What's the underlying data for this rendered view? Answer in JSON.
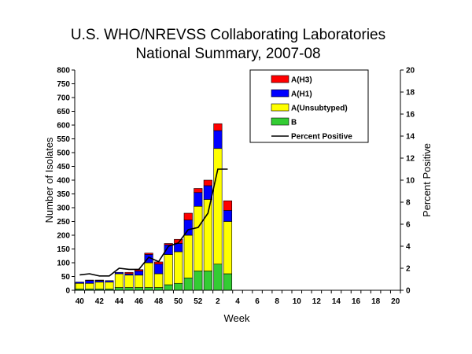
{
  "chart_data": {
    "type": "bar",
    "stacked": true,
    "title_line1": "U.S. WHO/NREVSS Collaborating Laboratories",
    "title_line2": "National Summary, 2007-08",
    "xlabel": "Week",
    "ylabel": "Number of Isolates",
    "y2label": "Percent Positive",
    "ylim": [
      0,
      800
    ],
    "y2lim": [
      0,
      20
    ],
    "yticks": [
      0,
      50,
      100,
      150,
      200,
      250,
      300,
      350,
      400,
      450,
      500,
      550,
      600,
      650,
      700,
      750,
      800
    ],
    "y2ticks": [
      0,
      2,
      4,
      6,
      8,
      10,
      12,
      14,
      16,
      18,
      20
    ],
    "categories": [
      "40",
      "41",
      "42",
      "43",
      "44",
      "45",
      "46",
      "47",
      "48",
      "49",
      "50",
      "51",
      "52",
      "1",
      "2",
      "3",
      "4",
      "5",
      "6",
      "7",
      "8",
      "9",
      "10",
      "11",
      "12",
      "13",
      "14",
      "15",
      "16",
      "17",
      "18",
      "19",
      "20"
    ],
    "xtick_labels": [
      "40",
      "42",
      "44",
      "46",
      "48",
      "50",
      "52",
      "2",
      "4",
      "6",
      "8",
      "10",
      "12",
      "14",
      "16",
      "18",
      "20"
    ],
    "series": [
      {
        "name": "B",
        "color": "#33cc33",
        "values": [
          5,
          5,
          5,
          5,
          10,
          10,
          10,
          10,
          10,
          20,
          25,
          45,
          70,
          70,
          95,
          60,
          null,
          null,
          null,
          null,
          null,
          null,
          null,
          null,
          null,
          null,
          null,
          null,
          null,
          null,
          null,
          null,
          null
        ]
      },
      {
        "name": "A(Unsubtyped)",
        "color": "#ffff00",
        "values": [
          20,
          20,
          25,
          25,
          50,
          45,
          45,
          90,
          50,
          110,
          115,
          155,
          235,
          260,
          420,
          190,
          null,
          null,
          null,
          null,
          null,
          null,
          null,
          null,
          null,
          null,
          null,
          null,
          null,
          null,
          null,
          null,
          null
        ]
      },
      {
        "name": "A(H1)",
        "color": "#0000ff",
        "values": [
          5,
          10,
          5,
          5,
          5,
          5,
          15,
          30,
          35,
          35,
          30,
          55,
          50,
          50,
          65,
          40,
          null,
          null,
          null,
          null,
          null,
          null,
          null,
          null,
          null,
          null,
          null,
          null,
          null,
          null,
          null,
          null,
          null
        ]
      },
      {
        "name": "A(H3)",
        "color": "#ff0000",
        "values": [
          0,
          2,
          2,
          0,
          0,
          5,
          5,
          5,
          8,
          5,
          15,
          25,
          15,
          20,
          25,
          35,
          null,
          null,
          null,
          null,
          null,
          null,
          null,
          null,
          null,
          null,
          null,
          null,
          null,
          null,
          null,
          null,
          null
        ]
      }
    ],
    "line_series": {
      "name": "Percent Positive",
      "color": "#000000",
      "values": [
        1.4,
        1.5,
        1.3,
        1.3,
        2.0,
        1.9,
        1.9,
        3.0,
        2.6,
        4.0,
        4.3,
        5.5,
        5.7,
        7.0,
        11.0,
        11.0,
        null,
        null,
        null,
        null,
        null,
        null,
        null,
        null,
        null,
        null,
        null,
        null,
        null,
        null,
        null,
        null,
        null
      ]
    },
    "legend": {
      "placement": "top-right",
      "entries": [
        {
          "name": "A(H3)",
          "color": "#ff0000",
          "kind": "box"
        },
        {
          "name": "A(H1)",
          "color": "#0000ff",
          "kind": "box"
        },
        {
          "name": "A(Unsubtyped)",
          "color": "#ffff00",
          "kind": "box"
        },
        {
          "name": "B",
          "color": "#33cc33",
          "kind": "box"
        },
        {
          "name": "Percent Positive",
          "color": "#000000",
          "kind": "line"
        }
      ]
    },
    "grid": false
  }
}
